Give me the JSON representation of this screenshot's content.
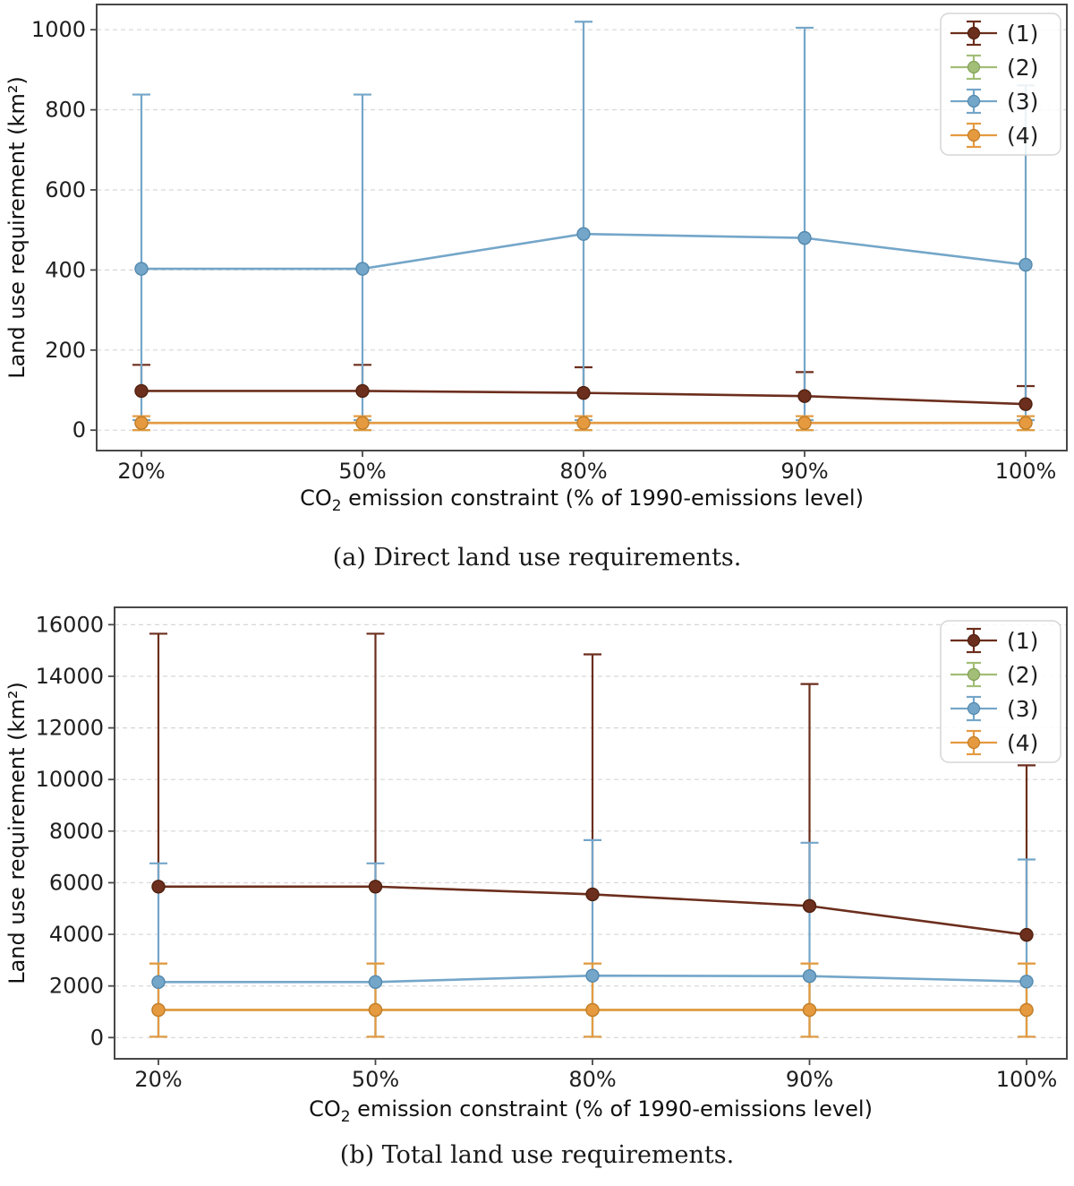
{
  "page": {
    "background": "#ffffff"
  },
  "style": {
    "grid_color": "#d6d6d6",
    "spine_color": "#484848",
    "tick_color": "#484848",
    "tick_label_color": "#1f1f1f",
    "axis_label_color": "#111111",
    "legend_border_color": "#d5d5d5",
    "legend_fill": "rgba(255,255,255,0.85)"
  },
  "legend": {
    "labels": [
      "(1)",
      "(2)",
      "(3)",
      "(4)"
    ],
    "position": "upper right"
  },
  "chart_data": [
    {
      "type": "line",
      "caption": "(a) Direct land use requirements.",
      "title": "",
      "xlabel": {
        "pre": "CO",
        "sub": "2",
        "rest": " emission constraint (% of 1990-emissions level)"
      },
      "ylabel": "Land use requirement (km²)",
      "categories": [
        "20%",
        "50%",
        "80%",
        "90%",
        "100%"
      ],
      "yticks": [
        0,
        200,
        400,
        600,
        800,
        1000
      ],
      "ylim": [
        -51,
        1063
      ],
      "grid": true,
      "legend_position": "upper right",
      "series": [
        {
          "name": "(1)",
          "color": "#6C2E1D",
          "edge": "#50200F",
          "values": [
            98,
            98,
            93,
            85,
            65
          ],
          "err_hi": [
            163,
            163,
            157,
            145,
            110
          ],
          "err_lo": [
            null,
            null,
            null,
            null,
            null
          ]
        },
        {
          "name": "(2)",
          "color": "#A2BE77",
          "edge": "#84A159",
          "values": [
            18,
            18,
            18,
            18,
            18
          ],
          "err_hi": [
            35,
            35,
            35,
            35,
            35
          ],
          "err_lo": [
            0,
            0,
            0,
            0,
            0
          ],
          "note": "coincides with series (4), hidden beneath it"
        },
        {
          "name": "(3)",
          "color": "#74A6C9",
          "edge": "#5389AE",
          "values": [
            403,
            403,
            490,
            480,
            413
          ],
          "err_hi": [
            838,
            838,
            1020,
            1005,
            861
          ],
          "err_lo": [
            25,
            25,
            25,
            25,
            25
          ]
        },
        {
          "name": "(4)",
          "color": "#E59A40",
          "edge": "#C47D27",
          "values": [
            18,
            18,
            18,
            18,
            18
          ],
          "err_hi": [
            35,
            35,
            35,
            35,
            35
          ],
          "err_lo": [
            0,
            0,
            0,
            0,
            0
          ]
        }
      ]
    },
    {
      "type": "line",
      "caption": "(b) Total land use requirements.",
      "title": "",
      "xlabel": {
        "pre": "CO",
        "sub": "2",
        "rest": " emission constraint (% of 1990-emissions level)"
      },
      "ylabel": "Land use requirement (km²)",
      "categories": [
        "20%",
        "50%",
        "80%",
        "90%",
        "100%"
      ],
      "yticks": [
        0,
        2000,
        4000,
        6000,
        8000,
        10000,
        12000,
        14000,
        16000
      ],
      "ylim": [
        -823,
        16672
      ],
      "grid": true,
      "legend_position": "upper right",
      "series": [
        {
          "name": "(1)",
          "color": "#6C2E1D",
          "edge": "#50200F",
          "values": [
            5850,
            5850,
            5550,
            5100,
            3980
          ],
          "err_hi": [
            15650,
            15650,
            14850,
            13700,
            10550
          ],
          "err_lo": [
            null,
            null,
            null,
            null,
            null
          ]
        },
        {
          "name": "(2)",
          "color": "#A2BE77",
          "edge": "#84A159",
          "values": [
            1070,
            1070,
            1070,
            1070,
            1070
          ],
          "err_hi": [
            2870,
            2870,
            2870,
            2870,
            2870
          ],
          "err_lo": [
            30,
            30,
            30,
            30,
            30
          ],
          "note": "coincides with series (4), hidden beneath it"
        },
        {
          "name": "(3)",
          "color": "#74A6C9",
          "edge": "#5389AE",
          "values": [
            2150,
            2150,
            2400,
            2380,
            2170
          ],
          "err_hi": [
            6750,
            6750,
            7650,
            7550,
            6900
          ],
          "err_lo": [
            30,
            30,
            30,
            30,
            30
          ]
        },
        {
          "name": "(4)",
          "color": "#E59A40",
          "edge": "#C47D27",
          "values": [
            1070,
            1070,
            1070,
            1070,
            1070
          ],
          "err_hi": [
            2870,
            2870,
            2870,
            2870,
            2870
          ],
          "err_lo": [
            30,
            30,
            30,
            30,
            30
          ]
        }
      ]
    }
  ]
}
